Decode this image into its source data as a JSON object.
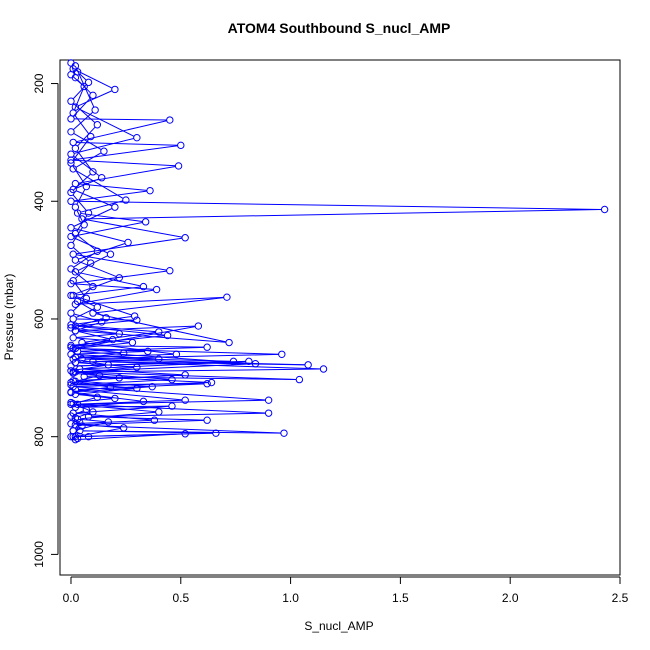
{
  "chart_data": {
    "type": "line",
    "title": "ATOM4 Southbound S_nucl_AMP",
    "xlabel": "S_nucl_AMP",
    "ylabel": "Pressure (mbar)",
    "xlim": [
      -0.05,
      2.5
    ],
    "ylim": [
      1035,
      160
    ],
    "y_inverted": true,
    "x_ticks": [
      0.0,
      0.5,
      1.0,
      1.5,
      2.0,
      2.5
    ],
    "x_tick_labels": [
      "0.0",
      "0.5",
      "1.0",
      "1.5",
      "2.0",
      "2.5"
    ],
    "y_ticks": [
      200,
      400,
      600,
      800,
      1000
    ],
    "y_tick_labels": [
      "200",
      "400",
      "600",
      "800",
      "1000"
    ],
    "grid": false,
    "legend": "none",
    "marker": "open-circle",
    "series": [
      {
        "color": "#0000ff",
        "points": [
          [
            0.0,
            165
          ],
          [
            0.02,
            190
          ],
          [
            0.1,
            220
          ],
          [
            0.0,
            260
          ],
          [
            0.45,
            262
          ],
          [
            0.01,
            300
          ],
          [
            0.5,
            305
          ],
          [
            0.0,
            330
          ],
          [
            0.49,
            340
          ],
          [
            0.02,
            370
          ],
          [
            0.36,
            382
          ],
          [
            0.0,
            400
          ],
          [
            2.43,
            414
          ],
          [
            0.05,
            430
          ],
          [
            0.52,
            462
          ],
          [
            0.01,
            490
          ],
          [
            0.45,
            518
          ],
          [
            0.0,
            540
          ],
          [
            0.39,
            550
          ],
          [
            0.02,
            575
          ],
          [
            0.71,
            563
          ],
          [
            0.1,
            590
          ],
          [
            0.72,
            640
          ],
          [
            0.02,
            620
          ],
          [
            0.58,
            612
          ],
          [
            0.01,
            650
          ],
          [
            0.96,
            660
          ],
          [
            0.05,
            668
          ],
          [
            1.08,
            678
          ],
          [
            0.1,
            672
          ],
          [
            1.15,
            685
          ],
          [
            0.02,
            690
          ],
          [
            1.04,
            703
          ],
          [
            0.06,
            698
          ],
          [
            0.64,
            708
          ],
          [
            0.01,
            715
          ],
          [
            0.9,
            738
          ],
          [
            0.03,
            745
          ],
          [
            0.9,
            760
          ],
          [
            0.08,
            766
          ],
          [
            0.62,
            772
          ],
          [
            0.02,
            780
          ],
          [
            0.97,
            794
          ],
          [
            0.04,
            790
          ],
          [
            0.66,
            794
          ],
          [
            0.01,
            800
          ],
          [
            0.52,
            795
          ],
          [
            0.02,
            805
          ]
        ]
      },
      {
        "color": "#0000ff",
        "points": [
          [
            0.02,
            170
          ],
          [
            0.11,
            245
          ],
          [
            0.0,
            282
          ],
          [
            0.15,
            315
          ],
          [
            0.01,
            345
          ],
          [
            0.25,
            398
          ],
          [
            0.03,
            420
          ],
          [
            0.34,
            435
          ],
          [
            0.0,
            460
          ],
          [
            0.18,
            490
          ],
          [
            0.02,
            520
          ],
          [
            0.33,
            545
          ],
          [
            0.01,
            560
          ],
          [
            0.29,
            595
          ],
          [
            0.0,
            610
          ],
          [
            0.4,
            622
          ],
          [
            0.05,
            640
          ],
          [
            0.48,
            660
          ],
          [
            0.02,
            665
          ],
          [
            0.74,
            672
          ],
          [
            0.0,
            680
          ],
          [
            0.81,
            672
          ],
          [
            0.04,
            685
          ],
          [
            0.52,
            695
          ],
          [
            0.01,
            705
          ],
          [
            0.37,
            715
          ],
          [
            0.0,
            725
          ],
          [
            0.33,
            740
          ],
          [
            0.02,
            750
          ],
          [
            0.46,
            748
          ],
          [
            0.01,
            760
          ],
          [
            0.38,
            772
          ],
          [
            0.0,
            778
          ],
          [
            0.24,
            785
          ],
          [
            0.02,
            800
          ]
        ]
      },
      {
        "color": "#0000ff",
        "points": [
          [
            0.01,
            175
          ],
          [
            0.2,
            210
          ],
          [
            0.02,
            240
          ],
          [
            0.3,
            292
          ],
          [
            0.0,
            320
          ],
          [
            0.14,
            360
          ],
          [
            0.01,
            380
          ],
          [
            0.2,
            410
          ],
          [
            0.0,
            445
          ],
          [
            0.26,
            470
          ],
          [
            0.02,
            500
          ],
          [
            0.22,
            530
          ],
          [
            0.0,
            560
          ],
          [
            0.12,
            580
          ],
          [
            0.01,
            600
          ],
          [
            0.3,
            602
          ],
          [
            0.02,
            612
          ],
          [
            0.44,
            628
          ],
          [
            0.0,
            645
          ],
          [
            0.62,
            648
          ],
          [
            0.03,
            655
          ],
          [
            0.84,
            676
          ],
          [
            0.01,
            690
          ],
          [
            0.46,
            703
          ],
          [
            0.0,
            712
          ],
          [
            0.62,
            710
          ],
          [
            0.02,
            720
          ],
          [
            0.52,
            738
          ],
          [
            0.0,
            745
          ],
          [
            0.4,
            758
          ],
          [
            0.03,
            770
          ],
          [
            0.17,
            775
          ],
          [
            0.01,
            790
          ],
          [
            0.08,
            800
          ]
        ]
      },
      {
        "color": "#0000ff",
        "points": [
          [
            0.03,
            180
          ],
          [
            0.08,
            198
          ],
          [
            0.0,
            230
          ],
          [
            0.12,
            270
          ],
          [
            0.02,
            310
          ],
          [
            0.1,
            350
          ],
          [
            0.0,
            385
          ],
          [
            0.08,
            420
          ],
          [
            0.02,
            455
          ],
          [
            0.12,
            485
          ],
          [
            0.0,
            515
          ],
          [
            0.1,
            545
          ],
          [
            0.03,
            570
          ],
          [
            0.16,
            598
          ],
          [
            0.0,
            615
          ],
          [
            0.22,
            625
          ],
          [
            0.01,
            632
          ],
          [
            0.28,
            640
          ],
          [
            0.02,
            650
          ],
          [
            0.35,
            655
          ],
          [
            0.0,
            660
          ],
          [
            0.4,
            668
          ],
          [
            0.02,
            674
          ],
          [
            0.3,
            682
          ],
          [
            0.01,
            692
          ],
          [
            0.22,
            700
          ],
          [
            0.0,
            708
          ],
          [
            0.3,
            718
          ],
          [
            0.02,
            728
          ],
          [
            0.2,
            735
          ],
          [
            0.0,
            742
          ],
          [
            0.1,
            758
          ],
          [
            0.02,
            768
          ],
          [
            0.05,
            782
          ],
          [
            0.0,
            800
          ]
        ]
      },
      {
        "color": "#0000ff",
        "points": [
          [
            0.0,
            185
          ],
          [
            0.06,
            205
          ],
          [
            0.01,
            250
          ],
          [
            0.09,
            290
          ],
          [
            0.0,
            335
          ],
          [
            0.07,
            375
          ],
          [
            0.02,
            410
          ],
          [
            0.06,
            440
          ],
          [
            0.0,
            475
          ],
          [
            0.09,
            505
          ],
          [
            0.01,
            535
          ],
          [
            0.07,
            565
          ],
          [
            0.0,
            590
          ],
          [
            0.14,
            605
          ],
          [
            0.02,
            620
          ],
          [
            0.19,
            635
          ],
          [
            0.0,
            648
          ],
          [
            0.24,
            658
          ],
          [
            0.01,
            668
          ],
          [
            0.17,
            678
          ],
          [
            0.0,
            688
          ],
          [
            0.13,
            696
          ],
          [
            0.02,
            706
          ],
          [
            0.18,
            716
          ],
          [
            0.0,
            724
          ],
          [
            0.12,
            733
          ],
          [
            0.01,
            744
          ],
          [
            0.07,
            754
          ],
          [
            0.0,
            765
          ],
          [
            0.04,
            776
          ],
          [
            0.01,
            790
          ],
          [
            0.03,
            803
          ]
        ]
      }
    ]
  }
}
